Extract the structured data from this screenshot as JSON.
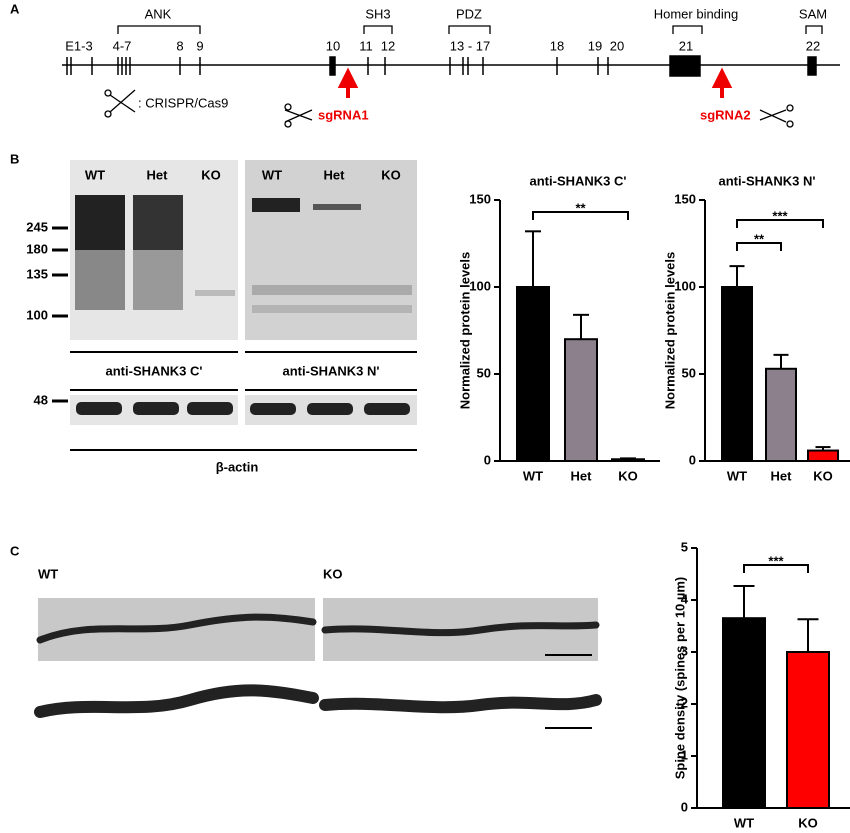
{
  "panel_a": {
    "label": "A",
    "domains": [
      "ANK",
      "SH3",
      "PDZ",
      "Homer binding",
      "SAM"
    ],
    "exons": [
      "E1-3",
      "4-7",
      "8",
      "9",
      "10",
      "11",
      "12",
      "13 - 17",
      "18",
      "19",
      "20",
      "21",
      "22"
    ],
    "crispr": ": CRISPR/Cas9",
    "sgrna1": "sgRNA1",
    "sgrna2": "sgRNA2"
  },
  "panel_b": {
    "label": "B",
    "lanes": [
      "WT",
      "Het",
      "KO",
      "WT",
      "Het",
      "KO"
    ],
    "markers": [
      245,
      180,
      135,
      100
    ],
    "actin_marker": 48,
    "antibodies": [
      "anti-SHANK3 C'",
      "anti-SHANK3 N'"
    ],
    "loading": "β-actin"
  },
  "panel_c": {
    "label": "C",
    "image_labels": [
      "WT",
      "KO"
    ]
  },
  "chart_data": [
    {
      "type": "bar",
      "title": "anti-SHANK3 C'",
      "ylabel": "Normalized protein levels",
      "categories": [
        "WT",
        "Het",
        "KO"
      ],
      "values": [
        100,
        70,
        1
      ],
      "errors": [
        32,
        14,
        0.5
      ],
      "colors": [
        "#000000",
        "#8c808c",
        "#8c808c"
      ],
      "ylim": [
        0,
        150
      ],
      "yticks": [
        0,
        50,
        100,
        150
      ],
      "annotations": [
        {
          "text": "**",
          "between": [
            0,
            2
          ]
        }
      ]
    },
    {
      "type": "bar",
      "title": "anti-SHANK3 N'",
      "ylabel": "Normalized protein levels",
      "categories": [
        "WT",
        "Het",
        "KO"
      ],
      "values": [
        100,
        53,
        6
      ],
      "errors": [
        12,
        8,
        2
      ],
      "colors": [
        "#000000",
        "#8c808c",
        "#ff0000"
      ],
      "ylim": [
        0,
        150
      ],
      "yticks": [
        0,
        50,
        100,
        150
      ],
      "annotations": [
        {
          "text": "**",
          "between": [
            0,
            1
          ]
        },
        {
          "text": "***",
          "between": [
            0,
            2
          ]
        }
      ]
    },
    {
      "type": "bar",
      "ylabel": "Spine density (spines per 10 µm)",
      "categories": [
        "WT",
        "KO"
      ],
      "values": [
        3.65,
        3.0
      ],
      "errors": [
        0.62,
        0.63
      ],
      "colors": [
        "#000000",
        "#ff0000"
      ],
      "ylim": [
        0,
        5
      ],
      "yticks": [
        0,
        1,
        2,
        3,
        4,
        5
      ],
      "annotations": [
        {
          "text": "***",
          "between": [
            0,
            1
          ]
        }
      ]
    }
  ]
}
